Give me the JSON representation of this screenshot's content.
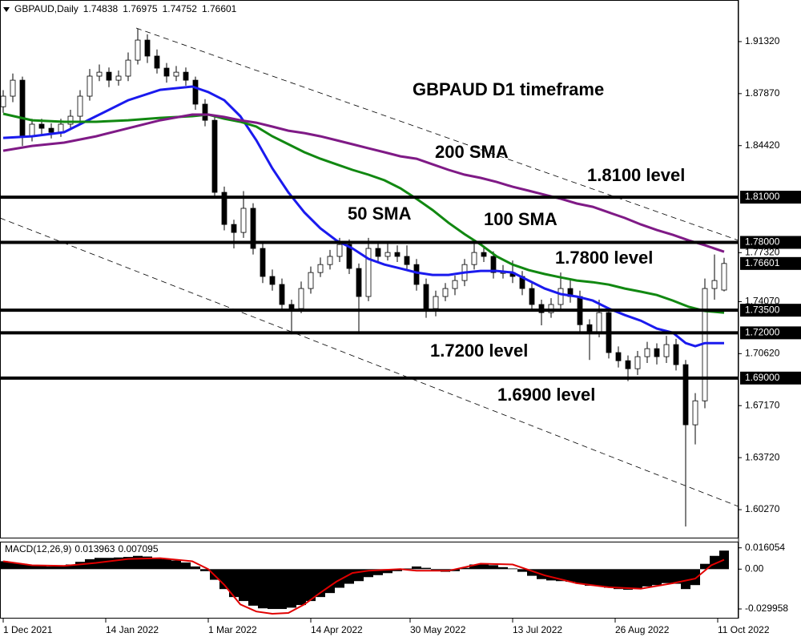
{
  "chart_data": [
    {
      "type": "candlestick",
      "title": "GBPAUD,Daily",
      "x": [
        0,
        3,
        6,
        9,
        12,
        15,
        18,
        21,
        24,
        27,
        30,
        33,
        36,
        39,
        42,
        45,
        48,
        51,
        54,
        57,
        60,
        63,
        66,
        69,
        72,
        75,
        78,
        81,
        84,
        87,
        90,
        93,
        96,
        99,
        102,
        105,
        108,
        111,
        114,
        117,
        120,
        123,
        126,
        129,
        132,
        135,
        138,
        141,
        144,
        147,
        150,
        153,
        156,
        159,
        162,
        165,
        168,
        171,
        174,
        177,
        180,
        183,
        186,
        189,
        192,
        195,
        198,
        201,
        204,
        207,
        210,
        213,
        216,
        219,
        222,
        225
      ],
      "open": [
        1.87,
        1.877,
        1.8876,
        1.8504,
        1.8584,
        1.8557,
        1.853,
        1.8584,
        1.8637,
        1.877,
        1.8903,
        1.8929,
        1.8876,
        1.8903,
        1.9009,
        1.9142,
        1.9036,
        1.8956,
        1.8903,
        1.8929,
        1.8876,
        1.8717,
        1.861,
        1.8132,
        1.7919,
        1.7866,
        1.8026,
        1.776,
        1.7574,
        1.7521,
        1.7388,
        1.7361,
        1.7494,
        1.76,
        1.7653,
        1.7707,
        1.7786,
        1.7627,
        1.7441,
        1.776,
        1.7707,
        1.7733,
        1.7707,
        1.7653,
        1.7521,
        1.7361,
        1.7441,
        1.7494,
        1.7547,
        1.7653,
        1.7733,
        1.7707,
        1.76,
        1.76,
        1.7574,
        1.7494,
        1.7388,
        1.7334,
        1.7388,
        1.7494,
        1.7441,
        1.7254,
        1.7201,
        1.7334,
        1.7069,
        1.7015,
        1.6962,
        1.7042,
        1.7095,
        1.7042,
        1.7122,
        1.6989,
        1.659,
        1.6749,
        1.7494,
        1.74838
      ],
      "high": [
        1.881,
        1.892,
        1.89,
        1.862,
        1.862,
        1.859,
        1.862,
        1.868,
        1.881,
        1.895,
        1.898,
        1.896,
        1.894,
        1.906,
        1.9217,
        1.918,
        1.908,
        1.899,
        1.897,
        1.896,
        1.89,
        1.875,
        1.864,
        1.817,
        1.795,
        1.814,
        1.806,
        1.78,
        1.762,
        1.756,
        1.742,
        1.754,
        1.764,
        1.77,
        1.775,
        1.783,
        1.782,
        1.766,
        1.783,
        1.78,
        1.779,
        1.778,
        1.778,
        1.769,
        1.756,
        1.748,
        1.753,
        1.758,
        1.769,
        1.78,
        1.778,
        1.774,
        1.765,
        1.768,
        1.761,
        1.753,
        1.742,
        1.743,
        1.76,
        1.756,
        1.748,
        1.729,
        1.742,
        1.737,
        1.711,
        1.705,
        1.708,
        1.714,
        1.713,
        1.718,
        1.716,
        1.702,
        1.68,
        1.756,
        1.772,
        1.76975
      ],
      "low": [
        1.866,
        1.873,
        1.844,
        1.847,
        1.851,
        1.849,
        1.85,
        1.855,
        1.86,
        1.874,
        1.887,
        1.883,
        1.884,
        1.887,
        1.898,
        1.899,
        1.892,
        1.886,
        1.887,
        1.884,
        1.868,
        1.857,
        1.809,
        1.788,
        1.776,
        1.783,
        1.772,
        1.753,
        1.748,
        1.734,
        1.719,
        1.733,
        1.746,
        1.757,
        1.762,
        1.767,
        1.759,
        1.72,
        1.741,
        1.767,
        1.768,
        1.767,
        1.762,
        1.748,
        1.73,
        1.731,
        1.741,
        1.745,
        1.751,
        1.762,
        1.767,
        1.756,
        1.756,
        1.753,
        1.745,
        1.734,
        1.725,
        1.73,
        1.735,
        1.74,
        1.721,
        1.702,
        1.717,
        1.703,
        1.697,
        1.688,
        1.692,
        1.7,
        1.699,
        1.7,
        1.695,
        1.5915,
        1.646,
        1.67,
        1.742,
        1.74752
      ],
      "close": [
        1.877,
        1.8876,
        1.8504,
        1.8584,
        1.8557,
        1.853,
        1.8584,
        1.8637,
        1.877,
        1.8903,
        1.8929,
        1.8876,
        1.8903,
        1.9009,
        1.9142,
        1.9036,
        1.8956,
        1.8903,
        1.8929,
        1.8876,
        1.8717,
        1.861,
        1.8132,
        1.7919,
        1.7866,
        1.8026,
        1.776,
        1.7574,
        1.7521,
        1.7388,
        1.7361,
        1.7494,
        1.76,
        1.7653,
        1.7707,
        1.7786,
        1.7627,
        1.7441,
        1.776,
        1.7707,
        1.7733,
        1.7707,
        1.7653,
        1.7521,
        1.7361,
        1.7441,
        1.7494,
        1.7547,
        1.7653,
        1.7733,
        1.7707,
        1.76,
        1.76,
        1.7574,
        1.7494,
        1.7388,
        1.7334,
        1.7388,
        1.7494,
        1.7441,
        1.7254,
        1.7201,
        1.7334,
        1.7069,
        1.7015,
        1.6962,
        1.7042,
        1.7095,
        1.7042,
        1.7122,
        1.6989,
        1.659,
        1.6749,
        1.7494,
        1.7547,
        1.76601
      ],
      "up_color": "#ffffff",
      "down_color": "#000000",
      "series": [
        {
          "name": "50 SMA",
          "color": "#1a1aee",
          "x": [
            0,
            9,
            19,
            29,
            39,
            49,
            59,
            64,
            69,
            74,
            79,
            84,
            89,
            94,
            99,
            104,
            109,
            114,
            119,
            124,
            129,
            134,
            139,
            144,
            149,
            154,
            159,
            164,
            169,
            174,
            179,
            184,
            189,
            194,
            199,
            204,
            209,
            213,
            216,
            219,
            225
          ],
          "values": [
            1.8493,
            1.8504,
            1.8531,
            1.8637,
            1.8743,
            1.8812,
            1.8834,
            1.8797,
            1.8743,
            1.8637,
            1.8478,
            1.8291,
            1.8132,
            1.7999,
            1.7893,
            1.7813,
            1.776,
            1.7691,
            1.7653,
            1.7627,
            1.76,
            1.7584,
            1.7584,
            1.76,
            1.7611,
            1.7611,
            1.76,
            1.7547,
            1.7494,
            1.7457,
            1.7441,
            1.7414,
            1.7361,
            1.7318,
            1.7281,
            1.7228,
            1.7201,
            1.7132,
            1.7111,
            1.7132,
            1.7132
          ]
        },
        {
          "name": "100 SMA",
          "color": "#118811",
          "x": [
            0,
            9,
            19,
            29,
            39,
            49,
            59,
            64,
            69,
            74,
            79,
            84,
            89,
            94,
            99,
            104,
            109,
            114,
            119,
            124,
            129,
            134,
            139,
            144,
            149,
            154,
            159,
            164,
            169,
            174,
            179,
            184,
            189,
            194,
            199,
            204,
            209,
            214,
            219,
            225
          ],
          "values": [
            1.8653,
            1.861,
            1.86,
            1.86,
            1.861,
            1.8626,
            1.8637,
            1.8648,
            1.8621,
            1.86,
            1.8568,
            1.8504,
            1.8451,
            1.8398,
            1.8355,
            1.8318,
            1.8281,
            1.8249,
            1.8212,
            1.8159,
            1.8089,
            1.8015,
            1.793,
            1.7855,
            1.7786,
            1.7707,
            1.7653,
            1.7616,
            1.759,
            1.7568,
            1.7547,
            1.7536,
            1.752,
            1.7494,
            1.7473,
            1.7451,
            1.7414,
            1.7372,
            1.7345,
            1.7334
          ]
        },
        {
          "name": "200 SMA",
          "color": "#7f1a86",
          "x": [
            0,
            9,
            19,
            29,
            39,
            49,
            59,
            64,
            69,
            74,
            79,
            84,
            89,
            94,
            99,
            104,
            109,
            114,
            119,
            124,
            129,
            134,
            139,
            144,
            149,
            154,
            159,
            164,
            169,
            174,
            179,
            184,
            189,
            194,
            199,
            204,
            209,
            214,
            219,
            225
          ],
          "values": [
            1.8408,
            1.844,
            1.8462,
            1.8504,
            1.8557,
            1.861,
            1.8648,
            1.8648,
            1.8632,
            1.861,
            1.8594,
            1.8568,
            1.8541,
            1.8525,
            1.8504,
            1.8478,
            1.8451,
            1.8424,
            1.8398,
            1.8371,
            1.8355,
            1.8318,
            1.8281,
            1.8249,
            1.8228,
            1.8201,
            1.8169,
            1.8143,
            1.8116,
            1.8089,
            1.8058,
            1.8036,
            1.7999,
            1.7962,
            1.7919,
            1.7882,
            1.785,
            1.7813,
            1.7781,
            1.7738
          ]
        }
      ],
      "levels": [
        {
          "value": 1.81,
          "label": "1.81000",
          "note": "1.8100 level"
        },
        {
          "value": 1.78,
          "label": "1.78000",
          "note": "1.7800 level"
        },
        {
          "value": 1.735,
          "label": "1.73500"
        },
        {
          "value": 1.72,
          "label": "1.72000",
          "note": "1.7200 level"
        },
        {
          "value": 1.69,
          "label": "1.69000",
          "note": "1.6900 level"
        }
      ],
      "trendlines": [
        {
          "x": [
            41.5,
            229.5
          ],
          "values": [
            1.9222,
            1.7813
          ]
        },
        {
          "x": [
            -1,
            229.5
          ],
          "values": [
            1.7962,
            1.6048
          ]
        }
      ],
      "annotation": "GBPAUD D1 timeframe",
      "xlim": [
        -1,
        229.5
      ],
      "ylim": [
        1.5836,
        1.9408
      ],
      "yticks": [
        {
          "value": 1.9132,
          "label": "1.91320"
        },
        {
          "value": 1.8787,
          "label": "1.87870"
        },
        {
          "value": 1.8442,
          "label": "1.84420"
        },
        {
          "value": 1.7732,
          "label": "1.77320"
        },
        {
          "value": 1.7407,
          "label": "1.74070"
        },
        {
          "value": 1.7062,
          "label": "1.70620"
        },
        {
          "value": 1.6717,
          "label": "1.67170"
        },
        {
          "value": 1.6372,
          "label": "1.63720"
        },
        {
          "value": 1.6027,
          "label": "1.60270"
        }
      ],
      "xticks": [
        {
          "value": 0,
          "label": "1 Dec 2021"
        },
        {
          "value": 32,
          "label": "14 Jan 2022"
        },
        {
          "value": 64,
          "label": "1 Mar 2022"
        },
        {
          "value": 96,
          "label": "14 Apr 2022"
        },
        {
          "value": 127,
          "label": "30 May 2022"
        },
        {
          "value": 159,
          "label": "13 Jul 2022"
        },
        {
          "value": 191,
          "label": "26 Aug 2022"
        },
        {
          "value": 223,
          "label": "11 Oct 2022"
        }
      ]
    },
    {
      "type": "macd",
      "title": "MACD(12,26,9)",
      "x": [
        0,
        3,
        6,
        9,
        12,
        15,
        18,
        21,
        24,
        27,
        30,
        33,
        36,
        39,
        42,
        45,
        48,
        51,
        54,
        57,
        60,
        63,
        66,
        69,
        72,
        75,
        78,
        81,
        84,
        87,
        90,
        93,
        96,
        99,
        102,
        105,
        108,
        111,
        114,
        117,
        120,
        123,
        126,
        129,
        132,
        135,
        138,
        141,
        144,
        147,
        150,
        153,
        156,
        159,
        162,
        165,
        168,
        171,
        174,
        177,
        180,
        183,
        186,
        189,
        192,
        195,
        198,
        201,
        204,
        207,
        210,
        213,
        216,
        219,
        222,
        225
      ],
      "histogram": {
        "color": "#000000",
        "values": [
          0.006,
          0.005,
          0.004,
          0.003,
          0.0025,
          0.002,
          0.0025,
          0.0035,
          0.0055,
          0.0075,
          0.0085,
          0.0085,
          0.0088,
          0.0092,
          0.01,
          0.0095,
          0.0085,
          0.0075,
          0.0065,
          0.005,
          0.002,
          -0.0015,
          -0.008,
          -0.015,
          -0.021,
          -0.024,
          -0.0275,
          -0.0295,
          -0.03,
          -0.03,
          -0.029,
          -0.027,
          -0.024,
          -0.021,
          -0.018,
          -0.014,
          -0.011,
          -0.009,
          -0.006,
          -0.0045,
          -0.003,
          -0.0015,
          0.0005,
          0.002,
          0.001,
          -0.001,
          -0.002,
          -0.0015,
          0.001,
          0.0035,
          0.004,
          0.003,
          0.0015,
          0.0005,
          -0.002,
          -0.005,
          -0.0075,
          -0.0085,
          -0.009,
          -0.0095,
          -0.011,
          -0.0125,
          -0.0125,
          -0.014,
          -0.015,
          -0.0155,
          -0.0145,
          -0.013,
          -0.012,
          -0.0105,
          -0.011,
          -0.015,
          -0.012,
          0.004,
          0.01,
          0.013963
        ]
      },
      "signal": {
        "color": "#e00000",
        "x": [
          0,
          9,
          19,
          29,
          39,
          49,
          59,
          64,
          69,
          74,
          79,
          84,
          89,
          94,
          99,
          104,
          109,
          114,
          124,
          129,
          139,
          149,
          159,
          169,
          179,
          189,
          199,
          209,
          216,
          221,
          225
        ],
        "values": [
          0.0059,
          0.0029,
          0.0024,
          0.0047,
          0.0077,
          0.0083,
          0.0059,
          0,
          -0.0118,
          -0.0265,
          -0.0319,
          -0.0336,
          -0.033,
          -0.0265,
          -0.0177,
          -0.0094,
          -0.0029,
          -0.0012,
          0,
          -0.0012,
          -0.0012,
          0.0041,
          0.0035,
          -0.0047,
          -0.0106,
          -0.0136,
          -0.0147,
          -0.0106,
          -0.0071,
          0.0029,
          0.007095
        ]
      },
      "ylim": [
        -0.0366,
        0.0201
      ],
      "yticks": [
        0.016054,
        {
          "value": 0,
          "label": "0.00"
        },
        -0.029958
      ]
    }
  ]
}
